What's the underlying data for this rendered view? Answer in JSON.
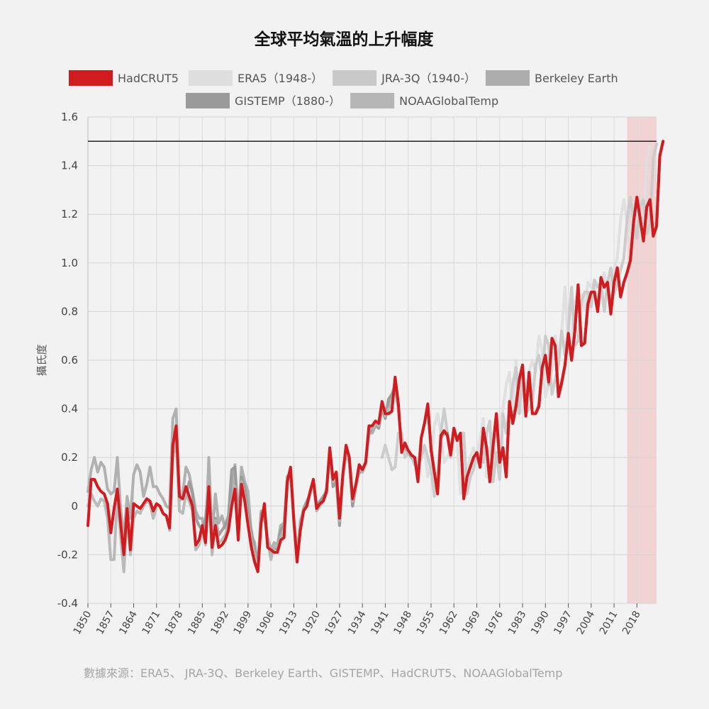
{
  "chart_data": {
    "type": "line",
    "title": "全球平均氣溫的上升幅度",
    "ylabel": "攝氏度",
    "xlabel": "",
    "source_note": "數據來源：ERA5、 JRA-3Q、Berkeley Earth、GISTEMP、HadCRUT5、NOAAGlobalTemp",
    "x_range": [
      1850,
      2024
    ],
    "ylim": [
      -0.4,
      1.6
    ],
    "y_ticks": [
      -0.4,
      -0.2,
      0,
      0.2,
      0.4,
      0.6,
      0.8,
      1.0,
      1.2,
      1.4,
      1.6
    ],
    "y_tick_labels": [
      "-0.4",
      "-0.2",
      "0",
      "0.2",
      "0.4",
      "0.6",
      "0.8",
      "1.0",
      "1.2",
      "1.4",
      "1.6"
    ],
    "x_ticks": [
      1850,
      1857,
      1864,
      1871,
      1878,
      1885,
      1892,
      1899,
      1906,
      1913,
      1920,
      1927,
      1934,
      1941,
      1948,
      1955,
      1962,
      1969,
      1976,
      1983,
      1990,
      1997,
      2004,
      2011,
      2018
    ],
    "reference_line": {
      "value": 1.5,
      "color": "#222222"
    },
    "highlight_band": {
      "from": 2015,
      "to": 2024,
      "color": "#f2d3d4"
    },
    "legend": {
      "placement": "top",
      "items": [
        {
          "label": "HadCRUT5",
          "color": "#d01c1f"
        },
        {
          "label": "ERA5（1948-）",
          "color": "#dedede"
        },
        {
          "label": "JRA-3Q（1940-）",
          "color": "#c9c9c9"
        },
        {
          "label": "Berkeley Earth",
          "color": "#adadad"
        },
        {
          "label": "GISTEMP（1880-）",
          "color": "#9a9a9a"
        },
        {
          "label": "NOAAGlobalTemp",
          "color": "#b6b6b6"
        }
      ]
    },
    "series": [
      {
        "name": "HadCRUT5",
        "color": "#d01c1f",
        "start": 1850,
        "values": [
          -0.08,
          0.11,
          0.11,
          0.08,
          0.06,
          0.05,
          0.01,
          -0.11,
          -0.01,
          0.07,
          -0.07,
          -0.2,
          -0.01,
          -0.18,
          0.01,
          0.0,
          -0.01,
          0.01,
          0.03,
          0.02,
          -0.02,
          0.01,
          0.0,
          -0.03,
          -0.04,
          -0.09,
          0.25,
          0.33,
          0.04,
          0.03,
          0.08,
          0.04,
          0.0,
          -0.16,
          -0.14,
          -0.08,
          -0.15,
          0.08,
          -0.17,
          -0.08,
          -0.17,
          -0.16,
          -0.14,
          -0.1,
          0.0,
          0.07,
          -0.14,
          0.09,
          0.02,
          -0.08,
          -0.17,
          -0.23,
          -0.27,
          -0.07,
          0.01,
          -0.17,
          -0.18,
          -0.19,
          -0.19,
          -0.14,
          -0.13,
          0.1,
          0.16,
          -0.06,
          -0.23,
          -0.1,
          -0.02,
          0.0,
          0.06,
          0.11,
          -0.01,
          0.01,
          0.02,
          0.06,
          0.24,
          0.11,
          0.14,
          -0.05,
          0.13,
          0.25,
          0.2,
          0.03,
          0.09,
          0.17,
          0.15,
          0.18,
          0.33,
          0.33,
          0.35,
          0.34,
          0.43,
          0.38,
          0.38,
          0.39,
          0.53,
          0.42,
          0.22,
          0.26,
          0.23,
          0.21,
          0.2,
          0.1,
          0.28,
          0.34,
          0.42,
          0.23,
          0.14,
          0.05,
          0.29,
          0.31,
          0.29,
          0.21,
          0.32,
          0.27,
          0.3,
          0.03,
          0.12,
          0.16,
          0.2,
          0.22,
          0.16,
          0.32,
          0.24,
          0.1,
          0.25,
          0.38,
          0.18,
          0.24,
          0.12,
          0.43,
          0.34,
          0.41,
          0.52,
          0.58,
          0.37,
          0.55,
          0.38,
          0.38,
          0.41,
          0.57,
          0.62,
          0.51,
          0.69,
          0.66,
          0.45,
          0.51,
          0.58,
          0.71,
          0.6,
          0.72,
          0.91,
          0.66,
          0.67,
          0.83,
          0.88,
          0.88,
          0.8,
          0.94,
          0.9,
          0.92,
          0.79,
          0.92,
          0.98,
          0.86,
          0.92,
          0.96,
          1.01,
          1.17,
          1.27,
          1.18,
          1.09,
          1.23,
          1.26,
          1.11,
          1.15,
          1.44,
          1.5
        ]
      },
      {
        "name": "ERA5（1948-）",
        "color": "#dedede",
        "start": 1948,
        "values": [
          0.22,
          0.2,
          0.18,
          0.2,
          0.21,
          0.24,
          0.12,
          0.17,
          0.33,
          0.38,
          0.3,
          0.18,
          0.2,
          0.24,
          0.28,
          0.28,
          0.05,
          0.1,
          0.14,
          0.2,
          0.24,
          0.2,
          0.28,
          0.36,
          0.12,
          0.24,
          0.1,
          0.38,
          0.32,
          0.4,
          0.5,
          0.55,
          0.38,
          0.6,
          0.38,
          0.4,
          0.42,
          0.55,
          0.6,
          0.55,
          0.7,
          0.64,
          0.45,
          0.5,
          0.56,
          0.7,
          0.62,
          0.72,
          0.9,
          0.66,
          0.68,
          0.84,
          0.86,
          0.87,
          0.81,
          0.92,
          0.9,
          0.92,
          0.8,
          0.92,
          0.96,
          0.87,
          0.92,
          0.97,
          1.02,
          1.18,
          1.26,
          1.17,
          1.1,
          1.22,
          1.26,
          1.12,
          1.16,
          1.42,
          1.48
        ]
      },
      {
        "name": "JRA-3Q（1940-）",
        "color": "#c9c9c9",
        "start": 1940,
        "values": [
          0.2,
          0.25,
          0.2,
          0.15,
          0.16,
          0.3,
          0.3,
          0.2,
          0.22,
          0.2,
          0.17,
          0.16,
          0.2,
          0.25,
          0.2,
          0.15,
          0.04,
          0.12,
          0.3,
          0.4,
          0.3,
          0.2,
          0.3,
          0.28,
          0.3,
          0.3,
          0.05,
          0.12,
          0.15,
          0.22,
          0.2,
          0.18,
          0.3,
          0.35,
          0.1,
          0.22,
          0.11,
          0.38,
          0.3,
          0.4,
          0.5,
          0.57,
          0.38,
          0.56,
          0.38,
          0.4,
          0.43,
          0.58,
          0.62,
          0.52,
          0.7,
          0.66,
          0.46,
          0.52,
          0.58,
          0.72,
          0.62,
          0.72,
          0.9,
          0.66,
          0.68,
          0.84,
          0.88,
          0.88,
          0.82,
          0.93,
          0.9,
          0.92,
          0.8,
          0.92,
          0.98,
          0.87,
          0.92,
          0.97,
          1.02,
          1.18,
          1.27,
          1.18,
          1.1,
          1.23,
          1.26,
          1.12,
          1.16,
          1.43,
          1.49
        ]
      },
      {
        "name": "Berkeley Earth",
        "color": "#adadad",
        "start": 1850,
        "values": [
          0.06,
          0.15,
          0.2,
          0.14,
          0.18,
          0.16,
          0.07,
          0.05,
          0.06,
          0.2,
          -0.01,
          -0.13,
          0.04,
          -0.05,
          0.13,
          0.17,
          0.14,
          0.04,
          0.09,
          0.16,
          0.08,
          0.08,
          0.05,
          0.03,
          0.0,
          -0.01,
          0.36,
          0.4,
          0.02,
          0.05,
          0.16,
          0.13,
          0.06,
          -0.02,
          -0.05,
          -0.05,
          -0.15,
          0.2,
          -0.13,
          0.05,
          -0.07,
          -0.04,
          -0.09,
          -0.06,
          0.04,
          0.17,
          -0.06,
          0.16,
          0.1,
          0.06,
          -0.12,
          -0.15,
          -0.25,
          -0.02,
          -0.05,
          -0.13,
          -0.18,
          -0.15,
          -0.16,
          -0.08,
          -0.07,
          0.1,
          0.14,
          -0.04,
          -0.2,
          -0.06,
          -0.02,
          0.01,
          0.05,
          0.1,
          0.0,
          0.02,
          0.03,
          0.07,
          0.2,
          0.1,
          0.12,
          -0.06,
          0.12,
          0.22,
          0.18,
          0.0,
          0.08,
          0.15,
          0.14,
          0.18,
          0.3,
          0.3,
          0.33,
          0.32,
          0.42,
          0.38,
          0.42,
          0.46,
          0.5,
          0.4,
          0.26,
          0.24,
          0.22,
          0.2,
          0.2,
          0.12,
          0.28,
          0.34,
          0.4,
          0.24,
          0.14,
          0.06,
          0.28,
          0.3,
          0.3,
          0.22,
          0.32,
          0.27,
          0.3,
          0.04,
          0.12,
          0.16,
          0.2,
          0.22,
          0.16,
          0.3,
          0.24,
          0.1,
          0.24,
          0.38,
          0.18,
          0.24,
          0.12,
          0.42,
          0.35,
          0.42,
          0.52,
          0.58,
          0.38,
          0.54,
          0.38,
          0.38,
          0.42,
          0.57,
          0.62,
          0.5,
          0.68,
          0.66,
          0.45,
          0.5,
          0.58,
          0.7,
          0.6,
          0.72,
          0.9,
          0.66,
          0.67,
          0.84,
          0.88,
          0.88,
          0.8,
          0.94,
          0.9,
          0.92,
          0.8,
          0.92,
          0.98,
          0.86,
          0.92,
          0.96,
          1.01,
          1.17,
          1.27,
          1.18,
          1.09,
          1.23,
          1.26,
          1.12,
          1.15,
          1.44,
          1.5
        ]
      },
      {
        "name": "GISTEMP（1880-）",
        "color": "#9a9a9a",
        "start": 1880,
        "values": [
          0.04,
          0.1,
          0.05,
          -0.05,
          -0.08,
          -0.1,
          -0.05,
          0.1,
          -0.18,
          -0.05,
          -0.12,
          -0.1,
          -0.08,
          -0.04,
          0.15,
          0.16,
          -0.06,
          0.12,
          0.08,
          -0.03,
          -0.1,
          -0.18,
          -0.25,
          -0.03,
          -0.03,
          -0.15,
          -0.2,
          -0.17,
          -0.18,
          -0.1,
          -0.08,
          0.12,
          0.14,
          -0.05,
          -0.22,
          -0.08,
          -0.01,
          0.02,
          0.05,
          0.1,
          0.0,
          0.02,
          0.04,
          0.06,
          0.22,
          0.08,
          0.1,
          -0.08,
          0.12,
          0.22,
          0.18,
          0.0,
          0.08,
          0.14,
          0.14,
          0.18,
          0.3,
          0.32,
          0.34,
          0.32,
          0.4,
          0.36,
          0.44,
          0.46,
          0.48,
          0.4,
          0.25,
          0.24,
          0.22,
          0.2,
          0.2,
          0.12,
          0.28,
          0.34,
          0.42,
          0.24,
          0.14,
          0.06,
          0.28,
          0.3,
          0.3,
          0.22,
          0.32,
          0.27,
          0.3,
          0.04,
          0.12,
          0.16,
          0.2,
          0.22,
          0.16,
          0.31,
          0.24,
          0.1,
          0.24,
          0.38,
          0.18,
          0.24,
          0.12,
          0.43,
          0.34,
          0.41,
          0.52,
          0.58,
          0.37,
          0.55,
          0.38,
          0.38,
          0.41,
          0.57,
          0.62,
          0.51,
          0.69,
          0.66,
          0.45,
          0.51,
          0.58,
          0.71,
          0.6,
          0.72,
          0.91,
          0.66,
          0.67,
          0.83,
          0.88,
          0.88,
          0.8,
          0.94,
          0.9,
          0.92,
          0.79,
          0.92,
          0.98,
          0.86,
          0.92,
          0.96,
          1.01,
          1.17,
          1.27,
          1.18,
          1.09,
          1.23,
          1.26,
          1.11,
          1.15,
          1.44,
          1.5
        ]
      },
      {
        "name": "NOAAGlobalTemp",
        "color": "#b6b6b6",
        "start": 1850,
        "values": [
          0.0,
          0.05,
          0.02,
          0.0,
          0.03,
          0.02,
          -0.05,
          -0.22,
          -0.22,
          0.05,
          -0.12,
          -0.27,
          -0.02,
          -0.2,
          -0.05,
          -0.02,
          -0.03,
          0.0,
          0.02,
          0.01,
          -0.05,
          0.0,
          0.0,
          -0.03,
          -0.04,
          -0.1,
          0.2,
          0.28,
          -0.02,
          -0.03,
          0.05,
          0.02,
          -0.02,
          -0.18,
          -0.16,
          -0.1,
          -0.16,
          0.1,
          -0.2,
          -0.06,
          -0.15,
          -0.14,
          -0.12,
          -0.08,
          0.02,
          0.08,
          -0.12,
          0.1,
          0.03,
          -0.06,
          -0.14,
          -0.2,
          -0.27,
          -0.06,
          0.0,
          -0.14,
          -0.22,
          -0.16,
          -0.17,
          -0.13,
          -0.1,
          0.08,
          0.14,
          -0.05,
          -0.2,
          -0.08,
          -0.02,
          0.0,
          0.05,
          0.1,
          -0.02,
          0.0,
          0.02,
          0.05,
          0.22,
          0.1,
          0.12,
          -0.06,
          0.12,
          0.23,
          0.18,
          0.02,
          0.08,
          0.16,
          0.14,
          0.17,
          0.32,
          0.32,
          0.34,
          0.33,
          0.42,
          0.37,
          0.4,
          0.42,
          0.5,
          0.4,
          0.24,
          0.24,
          0.22,
          0.2,
          0.2,
          0.11,
          0.28,
          0.34,
          0.41,
          0.23,
          0.14,
          0.05,
          0.29,
          0.31,
          0.29,
          0.21,
          0.32,
          0.27,
          0.3,
          0.03,
          0.12,
          0.16,
          0.2,
          0.22,
          0.16,
          0.32,
          0.24,
          0.1,
          0.25,
          0.38,
          0.18,
          0.24,
          0.12,
          0.43,
          0.34,
          0.41,
          0.52,
          0.58,
          0.37,
          0.55,
          0.38,
          0.38,
          0.41,
          0.57,
          0.62,
          0.51,
          0.69,
          0.66,
          0.45,
          0.51,
          0.58,
          0.71,
          0.6,
          0.72,
          0.91,
          0.66,
          0.67,
          0.83,
          0.88,
          0.88,
          0.8,
          0.94,
          0.9,
          0.92,
          0.79,
          0.92,
          0.98,
          0.86,
          0.92,
          0.96,
          1.01,
          1.17,
          1.27,
          1.18,
          1.09,
          1.23,
          1.26,
          1.11,
          1.15,
          1.44,
          1.5
        ]
      }
    ]
  }
}
